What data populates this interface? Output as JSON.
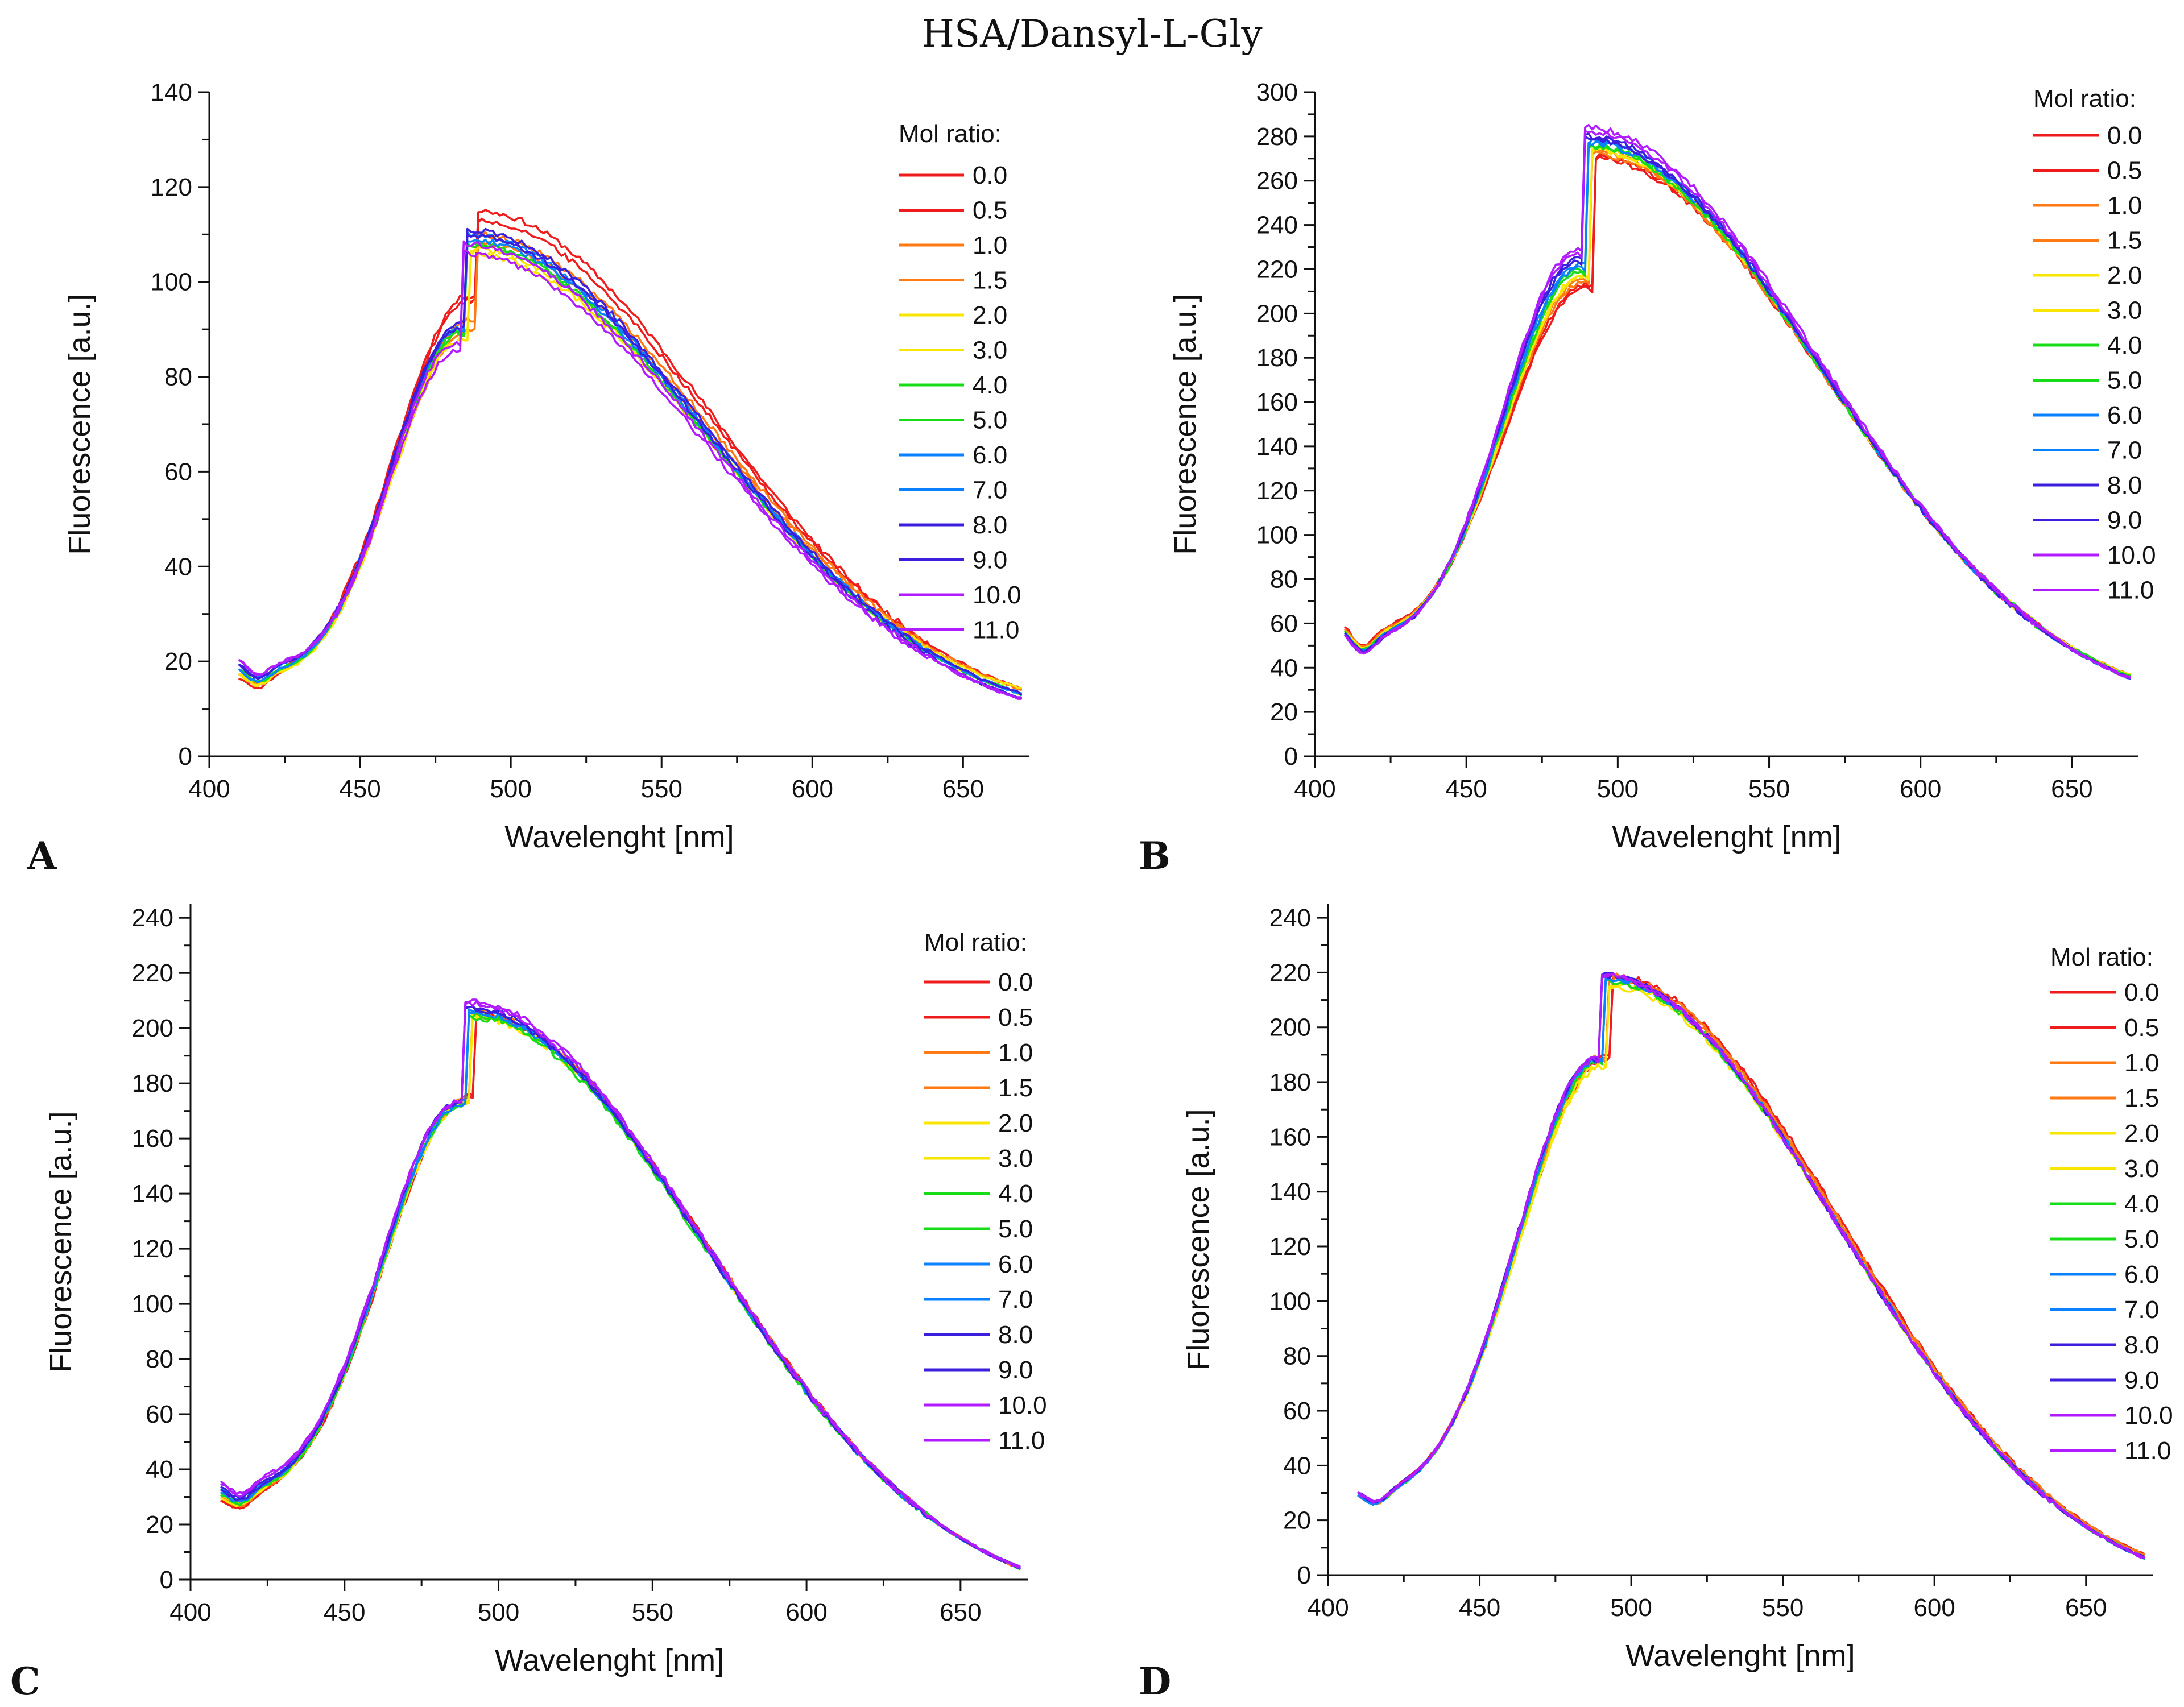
{
  "title": "HSA/Dansyl-L-Gly",
  "legend_title": "Mol ratio:",
  "series_names": [
    "0.0",
    "0.5",
    "1.0",
    "1.5",
    "2.0",
    "3.0",
    "4.0",
    "5.0",
    "6.0",
    "7.0",
    "8.0",
    "9.0",
    "10.0",
    "11.0"
  ],
  "series_colors": [
    "#ee1c1c",
    "#ee1c1c",
    "#ff7a12",
    "#ff7a12",
    "#f8e600",
    "#f8e600",
    "#18dc18",
    "#18dc18",
    "#0a82ff",
    "#0a82ff",
    "#3b1fdc",
    "#3b1fdc",
    "#b01cff",
    "#b01cff"
  ],
  "chart_data": [
    {
      "panel": "A",
      "type": "line",
      "xlabel": "Wavelenght [nm]",
      "ylabel": "Fluorescence [a.u.]",
      "xlim": [
        400,
        672
      ],
      "ylim": [
        0,
        140
      ],
      "xticks": [
        400,
        450,
        500,
        550,
        600,
        650
      ],
      "yticks": [
        0,
        20,
        40,
        60,
        80,
        100,
        120,
        140
      ],
      "x_range": [
        410,
        670
      ],
      "series": [
        {
          "name": "0.0",
          "peak_x": 488,
          "peak": 115,
          "start": 18,
          "end": 14
        },
        {
          "name": "0.5",
          "peak_x": 488,
          "peak": 113,
          "start": 17,
          "end": 14
        },
        {
          "name": "1.0",
          "peak_x": 488,
          "peak": 110,
          "start": 18,
          "end": 14
        },
        {
          "name": "1.5",
          "peak_x": 488,
          "peak": 108,
          "start": 18,
          "end": 14
        },
        {
          "name": "2.0",
          "peak_x": 486,
          "peak": 106,
          "start": 18,
          "end": 14
        },
        {
          "name": "3.0",
          "peak_x": 486,
          "peak": 107,
          "start": 18,
          "end": 13
        },
        {
          "name": "4.0",
          "peak_x": 485,
          "peak": 108,
          "start": 19,
          "end": 13
        },
        {
          "name": "5.0",
          "peak_x": 485,
          "peak": 108,
          "start": 19,
          "end": 13
        },
        {
          "name": "6.0",
          "peak_x": 485,
          "peak": 109,
          "start": 19,
          "end": 13
        },
        {
          "name": "7.0",
          "peak_x": 485,
          "peak": 110,
          "start": 20,
          "end": 13
        },
        {
          "name": "8.0",
          "peak_x": 485,
          "peak": 111,
          "start": 20,
          "end": 13
        },
        {
          "name": "9.0",
          "peak_x": 485,
          "peak": 110,
          "start": 20,
          "end": 12
        },
        {
          "name": "10.0",
          "peak_x": 484,
          "peak": 108,
          "start": 21,
          "end": 12
        },
        {
          "name": "11.0",
          "peak_x": 484,
          "peak": 106,
          "start": 21,
          "end": 12
        }
      ]
    },
    {
      "panel": "B",
      "type": "line",
      "xlabel": "Wavelenght [nm]",
      "ylabel": "Fluorescence [a.u.]",
      "xlim": [
        400,
        672
      ],
      "ylim": [
        0,
        300
      ],
      "xticks": [
        400,
        450,
        500,
        550,
        600,
        650
      ],
      "yticks": [
        0,
        20,
        40,
        60,
        80,
        100,
        120,
        140,
        160,
        180,
        200,
        220,
        240,
        260,
        280,
        300
      ],
      "x_range": [
        410,
        670
      ],
      "series": [
        {
          "name": "0.0",
          "peak_x": 492,
          "peak": 270,
          "start": 60,
          "end": 36
        },
        {
          "name": "0.5",
          "peak_x": 492,
          "peak": 271,
          "start": 59,
          "end": 36
        },
        {
          "name": "1.0",
          "peak_x": 491,
          "peak": 272,
          "start": 59,
          "end": 36
        },
        {
          "name": "1.5",
          "peak_x": 491,
          "peak": 273,
          "start": 59,
          "end": 36
        },
        {
          "name": "2.0",
          "peak_x": 491,
          "peak": 274,
          "start": 58,
          "end": 36
        },
        {
          "name": "3.0",
          "peak_x": 491,
          "peak": 274,
          "start": 58,
          "end": 36
        },
        {
          "name": "4.0",
          "peak_x": 490,
          "peak": 275,
          "start": 58,
          "end": 36
        },
        {
          "name": "5.0",
          "peak_x": 490,
          "peak": 276,
          "start": 57,
          "end": 35
        },
        {
          "name": "6.0",
          "peak_x": 490,
          "peak": 277,
          "start": 57,
          "end": 35
        },
        {
          "name": "7.0",
          "peak_x": 490,
          "peak": 278,
          "start": 57,
          "end": 35
        },
        {
          "name": "8.0",
          "peak_x": 489,
          "peak": 279,
          "start": 57,
          "end": 35
        },
        {
          "name": "9.0",
          "peak_x": 489,
          "peak": 280,
          "start": 56,
          "end": 35
        },
        {
          "name": "10.0",
          "peak_x": 489,
          "peak": 282,
          "start": 56,
          "end": 35
        },
        {
          "name": "11.0",
          "peak_x": 489,
          "peak": 284,
          "start": 56,
          "end": 35
        }
      ]
    },
    {
      "panel": "C",
      "type": "line",
      "xlabel": "Wavelenght [nm]",
      "ylabel": "Fluorescence [a.u.]",
      "xlim": [
        400,
        672
      ],
      "ylim": [
        0,
        245
      ],
      "xticks": [
        400,
        450,
        500,
        550,
        600,
        650
      ],
      "yticks": [
        0,
        20,
        40,
        60,
        80,
        100,
        120,
        140,
        160,
        180,
        200,
        220,
        240
      ],
      "x_range": [
        410,
        670
      ],
      "series": [
        {
          "name": "0.0",
          "peak_x": 492,
          "peak": 205,
          "start": 30,
          "end": 4
        },
        {
          "name": "0.5",
          "peak_x": 492,
          "peak": 205,
          "start": 30,
          "end": 4
        },
        {
          "name": "1.0",
          "peak_x": 491,
          "peak": 205,
          "start": 31,
          "end": 4
        },
        {
          "name": "1.5",
          "peak_x": 491,
          "peak": 206,
          "start": 31,
          "end": 4
        },
        {
          "name": "2.0",
          "peak_x": 491,
          "peak": 204,
          "start": 31,
          "end": 4
        },
        {
          "name": "3.0",
          "peak_x": 491,
          "peak": 205,
          "start": 32,
          "end": 4
        },
        {
          "name": "4.0",
          "peak_x": 490,
          "peak": 204,
          "start": 32,
          "end": 4
        },
        {
          "name": "5.0",
          "peak_x": 490,
          "peak": 205,
          "start": 33,
          "end": 4
        },
        {
          "name": "6.0",
          "peak_x": 490,
          "peak": 206,
          "start": 33,
          "end": 4
        },
        {
          "name": "7.0",
          "peak_x": 490,
          "peak": 206,
          "start": 34,
          "end": 4
        },
        {
          "name": "8.0",
          "peak_x": 489,
          "peak": 207,
          "start": 34,
          "end": 4
        },
        {
          "name": "9.0",
          "peak_x": 489,
          "peak": 208,
          "start": 35,
          "end": 4
        },
        {
          "name": "10.0",
          "peak_x": 489,
          "peak": 209,
          "start": 36,
          "end": 4
        },
        {
          "name": "11.0",
          "peak_x": 489,
          "peak": 210,
          "start": 37,
          "end": 4
        }
      ]
    },
    {
      "panel": "D",
      "type": "line",
      "xlabel": "Wavelenght [nm]",
      "ylabel": "Fluorescence [a.u.]",
      "xlim": [
        400,
        672
      ],
      "ylim": [
        0,
        245
      ],
      "xticks": [
        400,
        450,
        500,
        550,
        600,
        650
      ],
      "yticks": [
        0,
        20,
        40,
        60,
        80,
        100,
        120,
        140,
        160,
        180,
        200,
        220,
        240
      ],
      "x_range": [
        410,
        670
      ],
      "series": [
        {
          "name": "0.0",
          "peak_x": 493,
          "peak": 218,
          "start": 30,
          "end": 7
        },
        {
          "name": "0.5",
          "peak_x": 493,
          "peak": 219,
          "start": 30,
          "end": 7
        },
        {
          "name": "1.0",
          "peak_x": 492,
          "peak": 219,
          "start": 30,
          "end": 7
        },
        {
          "name": "1.5",
          "peak_x": 492,
          "peak": 218,
          "start": 30,
          "end": 7
        },
        {
          "name": "2.0",
          "peak_x": 492,
          "peak": 215,
          "start": 30,
          "end": 6
        },
        {
          "name": "3.0",
          "peak_x": 492,
          "peak": 216,
          "start": 30,
          "end": 6
        },
        {
          "name": "4.0",
          "peak_x": 491,
          "peak": 217,
          "start": 30,
          "end": 6
        },
        {
          "name": "5.0",
          "peak_x": 491,
          "peak": 217,
          "start": 30,
          "end": 6
        },
        {
          "name": "6.0",
          "peak_x": 491,
          "peak": 218,
          "start": 30,
          "end": 6
        },
        {
          "name": "7.0",
          "peak_x": 491,
          "peak": 218,
          "start": 30,
          "end": 6
        },
        {
          "name": "8.0",
          "peak_x": 490,
          "peak": 219,
          "start": 31,
          "end": 6
        },
        {
          "name": "9.0",
          "peak_x": 490,
          "peak": 219,
          "start": 31,
          "end": 6
        },
        {
          "name": "10.0",
          "peak_x": 490,
          "peak": 219,
          "start": 31,
          "end": 6
        },
        {
          "name": "11.0",
          "peak_x": 490,
          "peak": 219,
          "start": 31,
          "end": 6
        }
      ]
    }
  ]
}
